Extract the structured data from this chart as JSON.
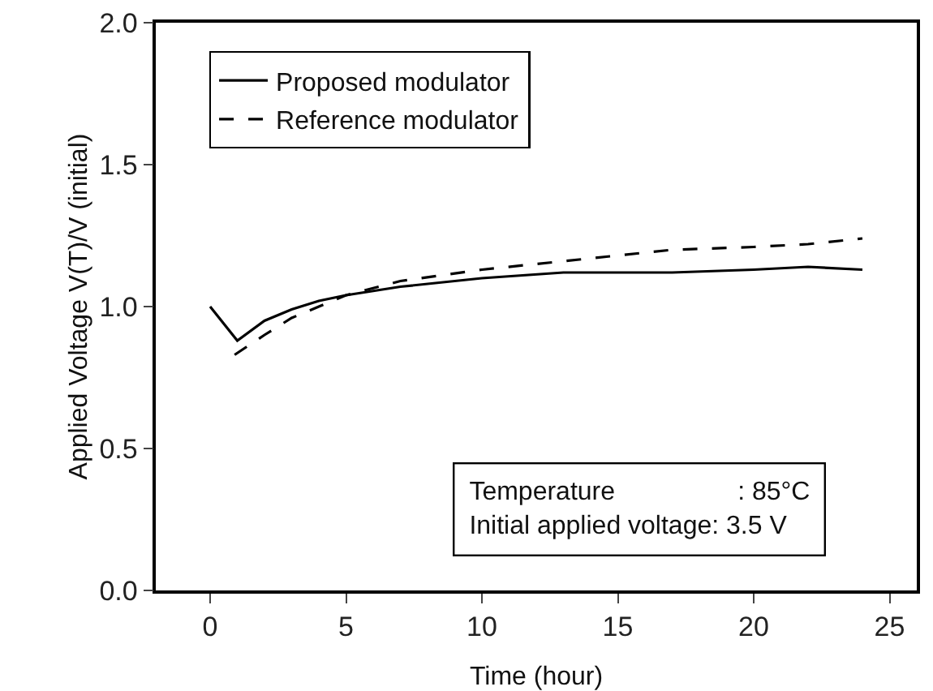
{
  "chart_data": {
    "type": "line",
    "xlabel": "Time (hour)",
    "ylabel": "Applied Voltage V(T)/V (initial)",
    "xlim": [
      -2,
      26
    ],
    "xticks": [
      0,
      5,
      10,
      15,
      20,
      25
    ],
    "ylim": [
      0,
      2
    ],
    "yticks": [
      {
        "value": 0,
        "label": "0.0"
      },
      {
        "value": 0.5,
        "label": "0.5"
      },
      {
        "value": 1,
        "label": "1.0"
      },
      {
        "value": 1.5,
        "label": "1.5"
      },
      {
        "value": 2,
        "label": "2.0"
      }
    ],
    "grid": false,
    "legend": "top left",
    "marker": "none",
    "series": [
      {
        "name": "Proposed modulator",
        "color": "#000000",
        "line_style": "solid",
        "x": [
          0,
          1,
          2,
          3,
          4,
          5,
          7,
          10,
          13,
          15,
          17,
          20,
          22,
          24
        ],
        "values": [
          1.0,
          0.88,
          0.95,
          0.99,
          1.02,
          1.04,
          1.07,
          1.1,
          1.12,
          1.12,
          1.12,
          1.13,
          1.14,
          1.13
        ]
      },
      {
        "name": "Reference modulator",
        "color": "#000000",
        "line_style": "dashed",
        "x": [
          0.9,
          2,
          3,
          4,
          5,
          7,
          10,
          13,
          15,
          17,
          20,
          22,
          24
        ],
        "values": [
          0.83,
          0.9,
          0.96,
          1.0,
          1.04,
          1.09,
          1.13,
          1.16,
          1.18,
          1.2,
          1.21,
          1.22,
          1.24
        ]
      }
    ],
    "annotations": [
      "Temperature                 : 85°C\nInitial applied voltage: 3.5 V"
    ]
  }
}
